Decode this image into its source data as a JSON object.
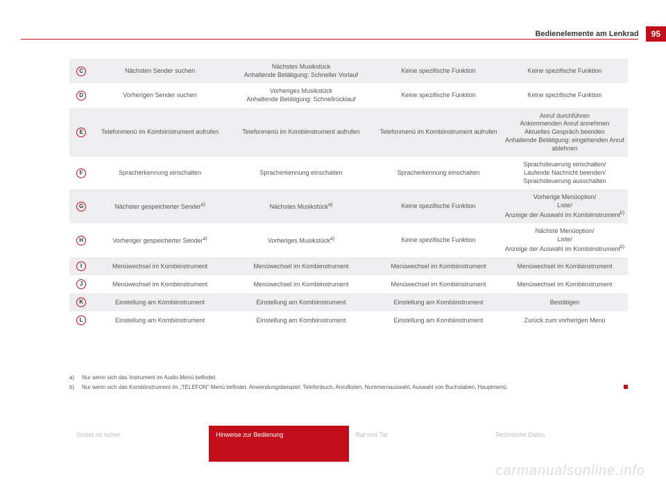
{
  "header": {
    "title": "Bedienelemente am Lenkrad",
    "page_number": "95"
  },
  "colors": {
    "accent": "#c20e1a",
    "shade_bg": "#eeeef0",
    "text": "#555555"
  },
  "table": {
    "rows": [
      {
        "key": "C",
        "shade": true,
        "c1": "Nächsten Sender suchen",
        "c2": "Nächstes Musikstück\nAnhaltende Betätigung: Schneller Vorlauf",
        "c3": "Keine spezifische Funktion",
        "c4": "Keine spezifische Funktion"
      },
      {
        "key": "D",
        "shade": false,
        "c1": "Vorherigen Sender suchen",
        "c2": "Vorheriges Musikstück\nAnhaltende Betätigung: Schnellrücklauf",
        "c3": "Keine spezifische Funktion",
        "c4": "Keine spezifische Funktion"
      },
      {
        "key": "E",
        "shade": true,
        "c1": "Telefonmenü im Kombiinstrument aufrufen",
        "c2": "Telefonmenü im Kombiinstrument aufrufen",
        "c3": "Telefonmenü im Kombiinstrument aufrufen",
        "c4": "Anruf durchführen\nAnkommenden Anruf annehmen\nAktuelles Gespräch beenden\nAnhaltende Betätigung: eingehenden Anruf ablehnen"
      },
      {
        "key": "F",
        "shade": false,
        "c1": "Spracherkennung einschalten",
        "c2": "Spracherkennung einschalten",
        "c3": "Spracherkennung einschalten",
        "c4": "Sprachsteuerung einschalten/\nLaufende Nachricht beenden/\nSprachsteuerung ausschalten"
      },
      {
        "key": "G",
        "shade": true,
        "c1": "Nächster gespeicherter Sender",
        "c1_sup": "a)",
        "c2": "Nächstes Musikstück",
        "c2_sup": "a)",
        "c3": "Keine spezifische Funktion",
        "c4": "Vorherige Menüoption/\nListe/\nAnzeige der Auswahl im Kombiinstrument",
        "c4_sup": "b)"
      },
      {
        "key": "H",
        "shade": false,
        "c1": "Vorheriger gespeicherter Sender",
        "c1_sup": "a)",
        "c2": "Vorheriges Musikstück",
        "c2_sup": "a)",
        "c3": "Keine spezifische Funktion",
        "c4": "Nächste Menüoption/\nListe/\nAnzeige der Auswahl im Kombiinstrument",
        "c4_sup": "b)"
      },
      {
        "key": "I",
        "shade": true,
        "c1": "Menüwechsel im Kombiinstrument",
        "c2": "Menüwechsel im Kombiinstrument",
        "c3": "Menüwechsel im Kombiinstrument",
        "c4": "Menüwechsel im Kombiinstrument"
      },
      {
        "key": "J",
        "shade": false,
        "c1": "Menüwechsel im Kombiinstrument",
        "c2": "Menüwechsel im Kombiinstrument",
        "c3": "Menüwechsel im Kombiinstrument",
        "c4": "Menüwechsel im Kombiinstrument"
      },
      {
        "key": "K",
        "shade": true,
        "c1": "Einstellung am Kombiinstrument",
        "c2": "Einstellung am Kombiinstrument",
        "c3": "Einstellung am Kombiinstrument",
        "c4": "Bestätigen"
      },
      {
        "key": "L",
        "shade": false,
        "c1": "Einstellung am Kombiinstrument",
        "c2": "Einstellung am Kombiinstrument",
        "c3": "Einstellung am Kombiinstrument",
        "c4": "Zurück zum vorherigen Menü"
      }
    ]
  },
  "footnotes": [
    {
      "key": "a)",
      "text": "Nur wenn sich das Instrument im Audio-Menü befindet."
    },
    {
      "key": "b)",
      "text": "Nur wenn sich das Kombiinstrument im „TELEFON\"-Menü befindet. Anwendungsbeispiel: Telefonbuch, Anruflisten, Nummernauswahl, Auswahl von Buchstaben, Hauptmenü."
    }
  ],
  "tabs": [
    {
      "label": "Sicher ist sicher",
      "active": false
    },
    {
      "label": "Hinweise zur Bedienung",
      "active": true
    },
    {
      "label": "Rat und Tat",
      "active": false
    },
    {
      "label": "Technische Daten",
      "active": false
    }
  ],
  "watermark": "carmanualsonline.info"
}
